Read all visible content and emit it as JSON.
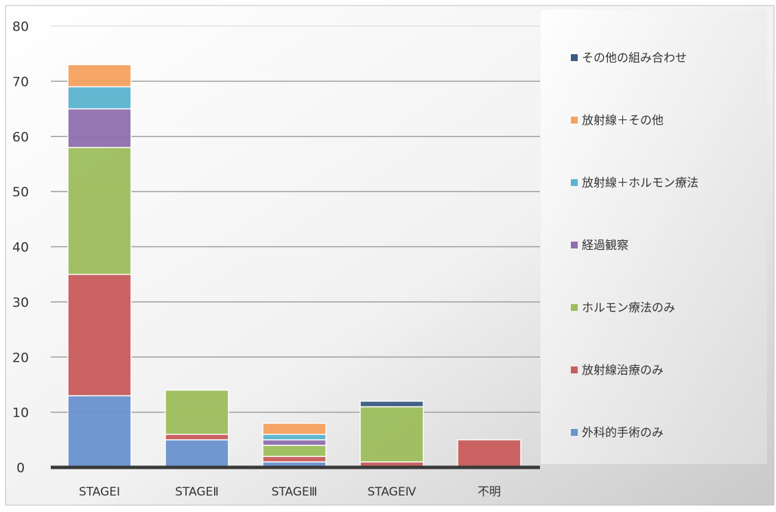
{
  "chart_data": {
    "type": "bar",
    "stacked": true,
    "categories": [
      "STAGEⅠ",
      "STAGEⅡ",
      "STAGEⅢ",
      "STAGEⅣ",
      "不明"
    ],
    "ylim": [
      0,
      80
    ],
    "yticks": [
      0,
      10,
      20,
      30,
      40,
      50,
      60,
      70,
      80
    ],
    "grid": true,
    "legend_position": "right",
    "series": [
      {
        "name": "外科的手術のみ",
        "color": "#6a93cf",
        "values": [
          13,
          5,
          1,
          0,
          0
        ]
      },
      {
        "name": "放射線治療のみ",
        "color": "#c95c5c",
        "values": [
          22,
          1,
          1,
          1,
          5
        ]
      },
      {
        "name": "ホルモン療法のみ",
        "color": "#9ebe5c",
        "values": [
          23,
          8,
          2,
          10,
          0
        ]
      },
      {
        "name": "経過観察",
        "color": "#8f6fae",
        "values": [
          7,
          0,
          1,
          0,
          0
        ]
      },
      {
        "name": "放射線＋ホルモン療法",
        "color": "#5bb4cf",
        "values": [
          4,
          0,
          1,
          0,
          0
        ]
      },
      {
        "name": "放射線＋その他",
        "color": "#f6a25e",
        "values": [
          4,
          0,
          2,
          0,
          0
        ]
      },
      {
        "name": "その他の組み合わせ",
        "color": "#3b5b82",
        "values": [
          0,
          0,
          0,
          1,
          0
        ]
      }
    ]
  }
}
